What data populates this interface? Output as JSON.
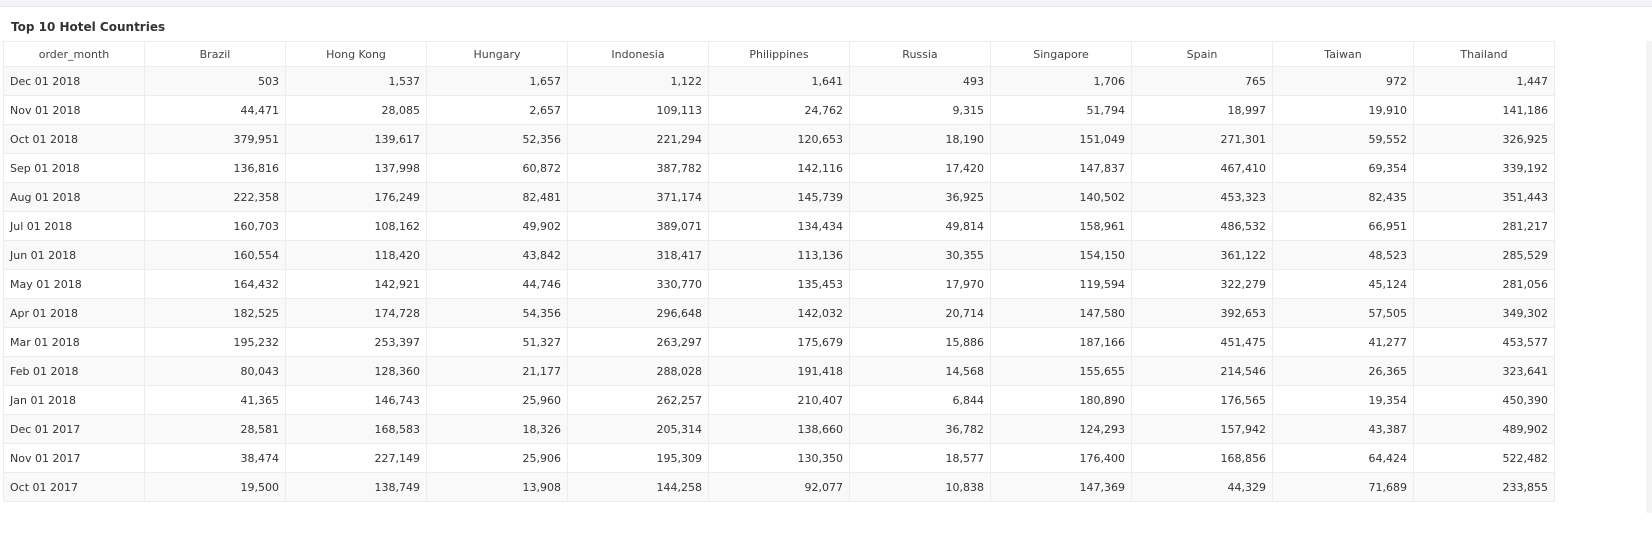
{
  "panel": {
    "title": "Top 10 Hotel Countries"
  },
  "table": {
    "columns": [
      "order_month",
      "Brazil",
      "Hong Kong",
      "Hungary",
      "Indonesia",
      "Philippines",
      "Russia",
      "Singapore",
      "Spain",
      "Taiwan",
      "Thailand"
    ],
    "rows": [
      [
        "Dec 01 2018",
        "503",
        "1,537",
        "1,657",
        "1,122",
        "1,641",
        "493",
        "1,706",
        "765",
        "972",
        "1,447"
      ],
      [
        "Nov 01 2018",
        "44,471",
        "28,085",
        "2,657",
        "109,113",
        "24,762",
        "9,315",
        "51,794",
        "18,997",
        "19,910",
        "141,186"
      ],
      [
        "Oct 01 2018",
        "379,951",
        "139,617",
        "52,356",
        "221,294",
        "120,653",
        "18,190",
        "151,049",
        "271,301",
        "59,552",
        "326,925"
      ],
      [
        "Sep 01 2018",
        "136,816",
        "137,998",
        "60,872",
        "387,782",
        "142,116",
        "17,420",
        "147,837",
        "467,410",
        "69,354",
        "339,192"
      ],
      [
        "Aug 01 2018",
        "222,358",
        "176,249",
        "82,481",
        "371,174",
        "145,739",
        "36,925",
        "140,502",
        "453,323",
        "82,435",
        "351,443"
      ],
      [
        "Jul 01 2018",
        "160,703",
        "108,162",
        "49,902",
        "389,071",
        "134,434",
        "49,814",
        "158,961",
        "486,532",
        "66,951",
        "281,217"
      ],
      [
        "Jun 01 2018",
        "160,554",
        "118,420",
        "43,842",
        "318,417",
        "113,136",
        "30,355",
        "154,150",
        "361,122",
        "48,523",
        "285,529"
      ],
      [
        "May 01 2018",
        "164,432",
        "142,921",
        "44,746",
        "330,770",
        "135,453",
        "17,970",
        "119,594",
        "322,279",
        "45,124",
        "281,056"
      ],
      [
        "Apr 01 2018",
        "182,525",
        "174,728",
        "54,356",
        "296,648",
        "142,032",
        "20,714",
        "147,580",
        "392,653",
        "57,505",
        "349,302"
      ],
      [
        "Mar 01 2018",
        "195,232",
        "253,397",
        "51,327",
        "263,297",
        "175,679",
        "15,886",
        "187,166",
        "451,475",
        "41,277",
        "453,577"
      ],
      [
        "Feb 01 2018",
        "80,043",
        "128,360",
        "21,177",
        "288,028",
        "191,418",
        "14,568",
        "155,655",
        "214,546",
        "26,365",
        "323,641"
      ],
      [
        "Jan 01 2018",
        "41,365",
        "146,743",
        "25,960",
        "262,257",
        "210,407",
        "6,844",
        "180,890",
        "176,565",
        "19,354",
        "450,390"
      ],
      [
        "Dec 01 2017",
        "28,581",
        "168,583",
        "18,326",
        "205,314",
        "138,660",
        "36,782",
        "124,293",
        "157,942",
        "43,387",
        "489,902"
      ],
      [
        "Nov 01 2017",
        "38,474",
        "227,149",
        "25,906",
        "195,309",
        "130,350",
        "18,577",
        "176,400",
        "168,856",
        "64,424",
        "522,482"
      ],
      [
        "Oct 01 2017",
        "19,500",
        "138,749",
        "13,908",
        "144,258",
        "92,077",
        "10,838",
        "147,369",
        "44,329",
        "71,689",
        "233,855"
      ]
    ]
  },
  "colors": {
    "border": "#ececec",
    "row_alt": "#f9f9f9",
    "text": "#333333"
  }
}
